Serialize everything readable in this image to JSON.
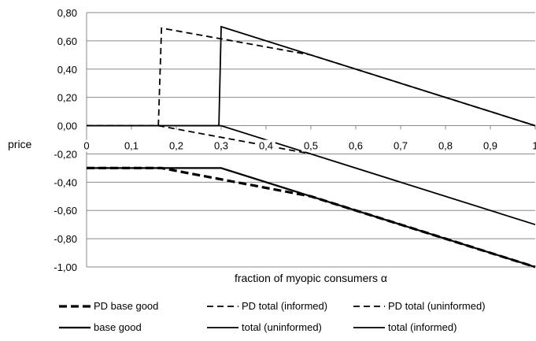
{
  "chart_data": {
    "type": "line",
    "title": "",
    "xlabel": "fraction of myopic consumers α",
    "ylabel": "price",
    "xlim": [
      0,
      1
    ],
    "ylim": [
      -1.0,
      0.8
    ],
    "x_ticks": [
      0,
      0.1,
      0.2,
      0.3,
      0.4,
      0.5,
      0.6,
      0.7,
      0.8,
      0.9,
      1
    ],
    "x_tick_labels": [
      "0",
      "0,1",
      "0,2",
      "0,3",
      "0,4",
      "0,5",
      "0,6",
      "0,7",
      "0,8",
      "0,9",
      "1"
    ],
    "y_ticks": [
      0.8,
      0.6,
      0.4,
      0.2,
      0,
      -0.2,
      -0.4,
      -0.6,
      -0.8,
      -1.0
    ],
    "y_tick_labels": [
      "0,80",
      "0,60",
      "0,40",
      "0,20",
      "0,00",
      "-0,20",
      "-0,40",
      "-0,60",
      "-0,80",
      "-1,00"
    ],
    "grid": "horizontal",
    "legend_position": "bottom",
    "series": [
      {
        "name": "PD base good",
        "style": "dashed-thick",
        "x": [
          0,
          0.167,
          0.5,
          1
        ],
        "y": [
          -0.3,
          -0.3,
          -0.5,
          -1.0
        ]
      },
      {
        "name": "PD total (informed)",
        "style": "dashed",
        "x": [
          0,
          0.16,
          0.167,
          0.5,
          1
        ],
        "y": [
          0,
          0,
          0.69,
          0.5,
          0
        ]
      },
      {
        "name": "PD total (uninformed)",
        "style": "dashed",
        "x": [
          0,
          0.16,
          0.5
        ],
        "y": [
          0,
          0,
          -0.2
        ]
      },
      {
        "name": "base good",
        "style": "solid-thick",
        "x": [
          0,
          0.3,
          1
        ],
        "y": [
          -0.3,
          -0.3,
          -1.0
        ]
      },
      {
        "name": "total (uninformed)",
        "style": "solid",
        "x": [
          0,
          0.3,
          1
        ],
        "y": [
          0,
          0,
          -0.7
        ]
      },
      {
        "name": "total (informed)",
        "style": "solid",
        "x": [
          0,
          0.295,
          0.3,
          1
        ],
        "y": [
          0,
          0,
          0.7,
          0
        ]
      }
    ]
  }
}
